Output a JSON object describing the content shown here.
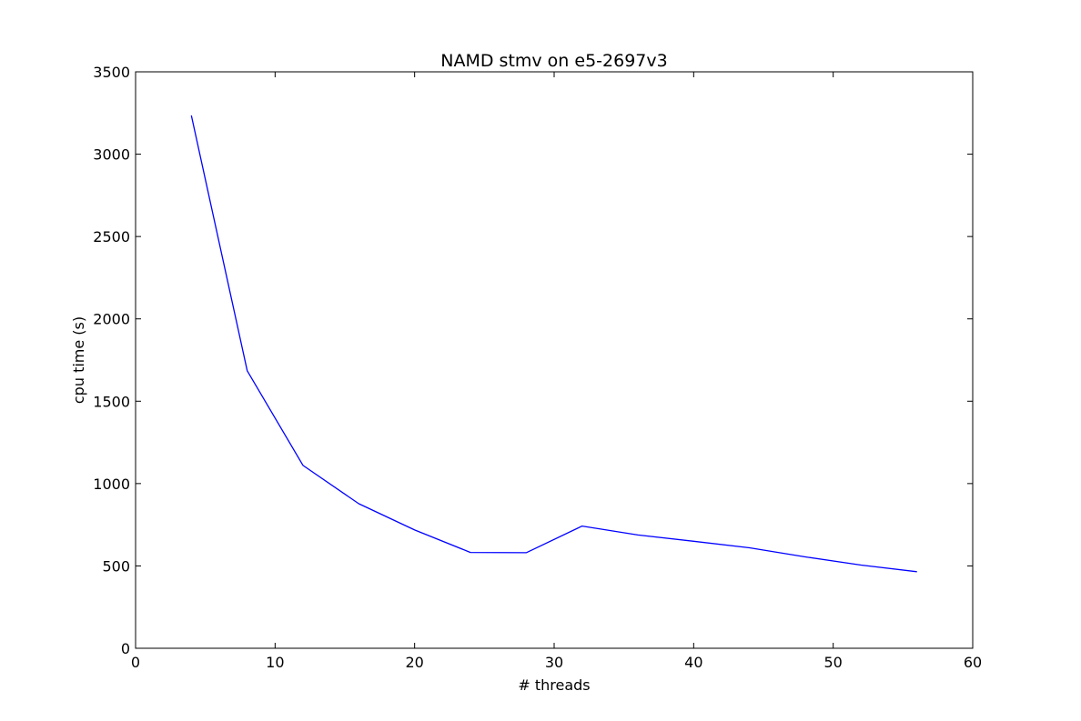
{
  "chart_data": {
    "type": "line",
    "title": "NAMD stmv on e5-2697v3",
    "xlabel": "# threads",
    "ylabel": "cpu time (s)",
    "xlim": [
      0,
      60
    ],
    "ylim": [
      0,
      3500
    ],
    "xticks": [
      0,
      10,
      20,
      30,
      40,
      50,
      60
    ],
    "yticks": [
      0,
      500,
      1000,
      1500,
      2000,
      2500,
      3000,
      3500
    ],
    "grid": false,
    "legend": "none",
    "series": [
      {
        "color": "#0000ff",
        "x": [
          4,
          8,
          12,
          16,
          20,
          24,
          28,
          32,
          36,
          40,
          44,
          48,
          52,
          56
        ],
        "y": [
          3235,
          1685,
          1110,
          878,
          718,
          582,
          580,
          742,
          688,
          650,
          610,
          555,
          505,
          465
        ]
      }
    ]
  }
}
